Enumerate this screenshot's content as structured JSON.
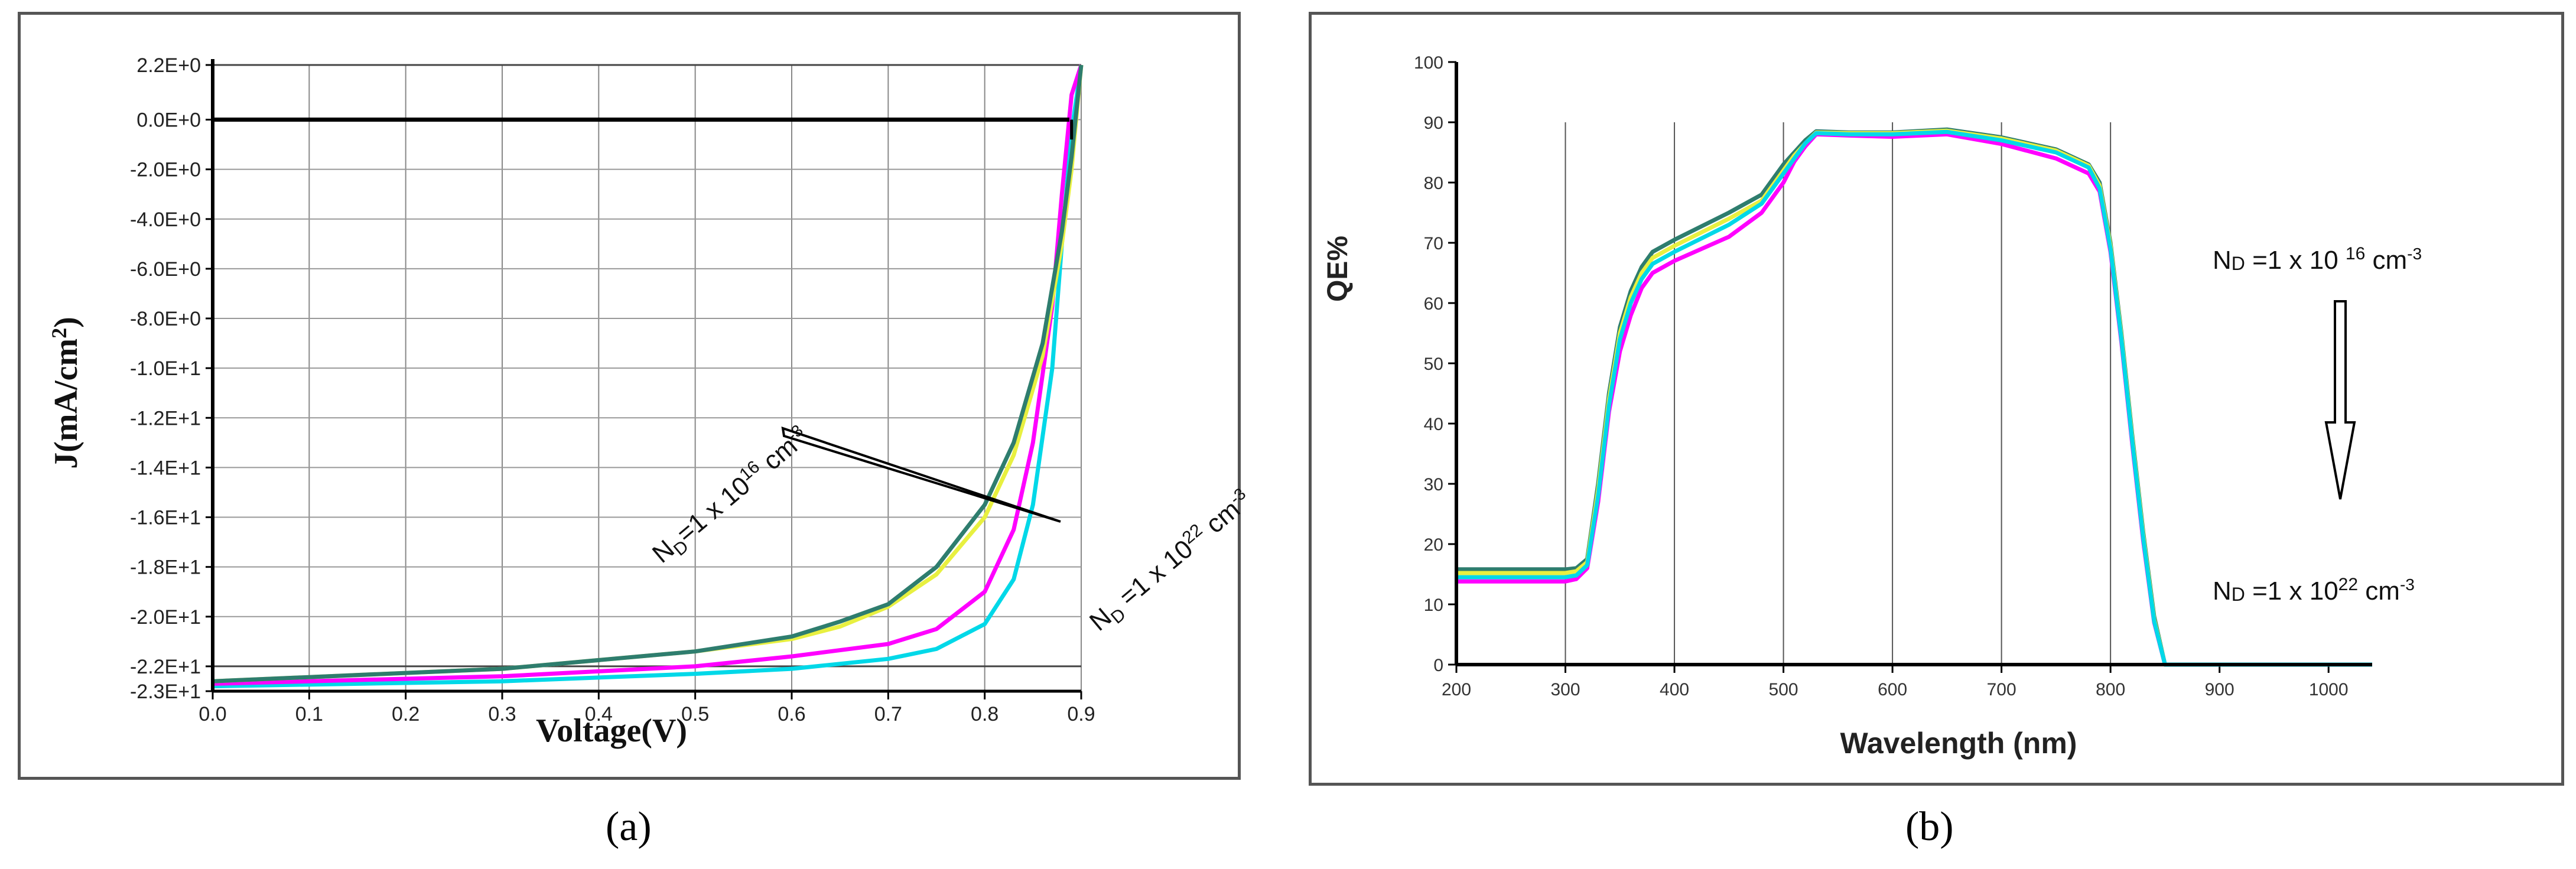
{
  "captions": {
    "a": "(a)",
    "b": "(b)"
  },
  "series_colors": [
    "#00a0a0",
    "#00d8e8",
    "#ff00ff",
    "#e8f040",
    "#2e7d6e"
  ],
  "chart_data": [
    {
      "type": "line",
      "panel": "a",
      "title": "",
      "xlabel": "Voltage(V)",
      "ylabel_parts": [
        "J(mA/cm",
        "2",
        ")"
      ],
      "xlim": [
        0,
        0.9
      ],
      "ylim": [
        -23,
        2.2
      ],
      "xticks": [
        0.0,
        0.1,
        0.2,
        0.3,
        0.4,
        0.5,
        0.6,
        0.7,
        0.8,
        0.9
      ],
      "xtick_labels": [
        "0.0",
        "0.1",
        "0.2",
        "0.3",
        "0.4",
        "0.5",
        "0.6",
        "0.7",
        "0.8",
        "0.9"
      ],
      "yticks": [
        2.2,
        0,
        -2,
        -4,
        -6,
        -8,
        -10,
        -12,
        -14,
        -16,
        -18,
        -20,
        -22,
        -23
      ],
      "ytick_labels": [
        "2.2E+0",
        "0.0E+0",
        "-2.0E+0",
        "-4.0E+0",
        "-6.0E+0",
        "-8.0E+0",
        "-1.0E+1",
        "-1.2E+1",
        "-1.4E+1",
        "-1.6E+1",
        "-1.8E+1",
        "-2.0E+1",
        "-2.2E+1",
        "-2.3E+1"
      ],
      "series": [
        {
          "name": "cyan",
          "x": [
            0,
            0.3,
            0.5,
            0.6,
            0.7,
            0.75,
            0.8,
            0.83,
            0.85,
            0.87,
            0.88,
            0.89,
            0.9
          ],
          "y": [
            -22.8,
            -22.6,
            -22.3,
            -22.1,
            -21.7,
            -21.3,
            -20.3,
            -18.5,
            -15.5,
            -10,
            -5,
            -0.5,
            2.2
          ]
        },
        {
          "name": "magenta",
          "x": [
            0,
            0.3,
            0.5,
            0.6,
            0.7,
            0.75,
            0.8,
            0.83,
            0.85,
            0.87,
            0.88,
            0.89,
            0.9
          ],
          "y": [
            -22.7,
            -22.4,
            -22,
            -21.6,
            -21.1,
            -20.5,
            -19,
            -16.5,
            -13,
            -7.5,
            -3,
            1,
            2.2
          ]
        },
        {
          "name": "yellow",
          "x": [
            0,
            0.3,
            0.5,
            0.6,
            0.65,
            0.7,
            0.75,
            0.8,
            0.83,
            0.86,
            0.88,
            0.89,
            0.9
          ],
          "y": [
            -22.6,
            -22.1,
            -21.4,
            -20.9,
            -20.4,
            -19.6,
            -18.3,
            -16,
            -13.5,
            -9.5,
            -5,
            -2,
            2.2
          ]
        },
        {
          "name": "green",
          "x": [
            0,
            0.3,
            0.5,
            0.6,
            0.65,
            0.7,
            0.75,
            0.8,
            0.83,
            0.86,
            0.88,
            0.89,
            0.9
          ],
          "y": [
            -22.6,
            -22.1,
            -21.4,
            -20.8,
            -20.2,
            -19.5,
            -18,
            -15.5,
            -13,
            -9,
            -4.5,
            -1.5,
            2.2
          ]
        }
      ],
      "annotations": {
        "low_prefix": "N",
        "low_sub": "D",
        "low_mid": "=1 x 10",
        "low_sup": "16",
        "low_unit": " cm",
        "low_unit_sup": "-3",
        "high_prefix": "N",
        "high_sub": "D",
        "high_mid": " =1 x 10",
        "high_sup": "22",
        "high_unit": " cm",
        "high_unit_sup": "-3"
      }
    },
    {
      "type": "line",
      "panel": "b",
      "title": "",
      "xlabel": "Wavelength (nm)",
      "ylabel": "QE%",
      "xlim": [
        200,
        1040
      ],
      "ylim": [
        0,
        100
      ],
      "xticks": [
        200,
        300,
        400,
        500,
        600,
        700,
        800,
        900,
        1000
      ],
      "xtick_labels": [
        "200",
        "300",
        "400",
        "500",
        "600",
        "700",
        "800",
        "900",
        "1000"
      ],
      "yticks": [
        0,
        10,
        20,
        30,
        40,
        50,
        60,
        70,
        80,
        90,
        100
      ],
      "ytick_labels": [
        "0",
        "10",
        "20",
        "30",
        "40",
        "50",
        "60",
        "70",
        "80",
        "90",
        "100"
      ],
      "series": [
        {
          "name": "green",
          "x": [
            200,
            300,
            310,
            320,
            330,
            340,
            350,
            360,
            370,
            380,
            400,
            450,
            480,
            500,
            510,
            520,
            530,
            560,
            600,
            650,
            700,
            750,
            780,
            790,
            800,
            810,
            820,
            830,
            840,
            850,
            1040
          ],
          "y": [
            15.8,
            15.8,
            16,
            17.5,
            30,
            45,
            56,
            62,
            66,
            68.5,
            70.5,
            75,
            78,
            83,
            85,
            87,
            88.5,
            88.3,
            88.3,
            88.8,
            87.5,
            85.5,
            83,
            80,
            70,
            55,
            38,
            22,
            8,
            0,
            0
          ]
        },
        {
          "name": "yellow",
          "x": [
            200,
            300,
            310,
            320,
            330,
            340,
            350,
            360,
            370,
            380,
            400,
            450,
            480,
            500,
            510,
            520,
            530,
            560,
            600,
            650,
            700,
            750,
            780,
            790,
            800,
            810,
            820,
            830,
            840,
            850,
            1040
          ],
          "y": [
            15.2,
            15.2,
            15.5,
            17,
            29,
            44,
            55,
            61,
            65,
            67.5,
            69.5,
            74,
            77,
            82,
            84.5,
            86.5,
            88.3,
            88.2,
            88.2,
            88.6,
            87.3,
            85.3,
            82.8,
            79.5,
            69.5,
            54.5,
            37.5,
            21.5,
            7.5,
            0,
            0
          ]
        },
        {
          "name": "magenta",
          "x": [
            200,
            300,
            310,
            320,
            330,
            340,
            350,
            360,
            370,
            380,
            400,
            450,
            480,
            500,
            510,
            520,
            530,
            560,
            600,
            650,
            700,
            750,
            780,
            790,
            800,
            810,
            820,
            830,
            840,
            850,
            1040
          ],
          "y": [
            13.8,
            13.8,
            14.2,
            16,
            27,
            42,
            52,
            58,
            62.5,
            65,
            67,
            71,
            75,
            80,
            83.5,
            86,
            88,
            87.8,
            87.6,
            88,
            86.4,
            84,
            81.5,
            78.5,
            68.5,
            53.5,
            36.5,
            20.5,
            7,
            0,
            0
          ]
        },
        {
          "name": "cyan",
          "x": [
            200,
            300,
            310,
            320,
            330,
            340,
            350,
            360,
            370,
            380,
            400,
            450,
            480,
            500,
            510,
            520,
            530,
            560,
            600,
            650,
            700,
            750,
            780,
            790,
            800,
            810,
            820,
            830,
            840,
            850,
            1040
          ],
          "y": [
            14.5,
            14.5,
            14.8,
            16.5,
            28,
            43,
            54,
            60,
            64,
            66.5,
            68.5,
            73,
            76.5,
            81.5,
            84,
            86.5,
            88.2,
            88,
            88,
            88.4,
            87,
            85,
            82.5,
            79,
            69,
            54,
            37,
            21,
            7.2,
            0,
            0
          ]
        }
      ],
      "annotations": {
        "low_prefix": "N",
        "low_sub": "D",
        "low_mid": " =1 x 10 ",
        "low_sup": "16",
        "low_unit": " cm",
        "low_unit_sup": "-3",
        "high_prefix": "N",
        "high_sub": "D",
        "high_mid": " =1 x 10",
        "high_sup": "22",
        "high_unit": " cm",
        "high_unit_sup": "-3"
      }
    }
  ]
}
